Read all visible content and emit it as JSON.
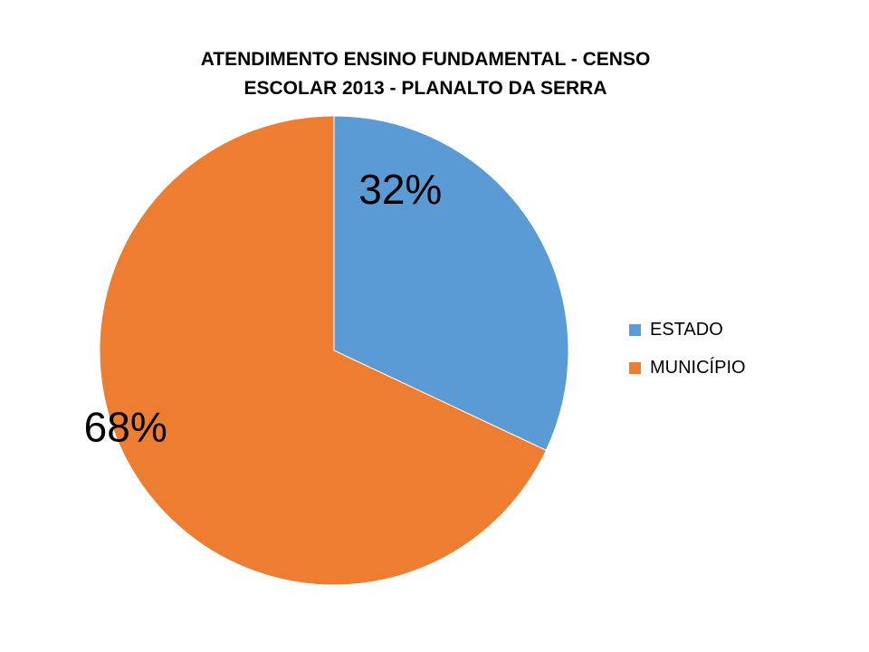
{
  "chart_data": {
    "type": "pie",
    "title_lines": [
      "ATENDIMENTO ENSINO FUNDAMENTAL -  CENSO",
      "ESCOLAR 2013 - PLANALTO DA SERRA"
    ],
    "slices": [
      {
        "name": "ESTADO",
        "value": 32,
        "label": "32%",
        "color": "#5B9BD5"
      },
      {
        "name": "MUNICÍPIO",
        "value": 68,
        "label": "68%",
        "color": "#ED7D31"
      }
    ],
    "legend_position": "right"
  }
}
